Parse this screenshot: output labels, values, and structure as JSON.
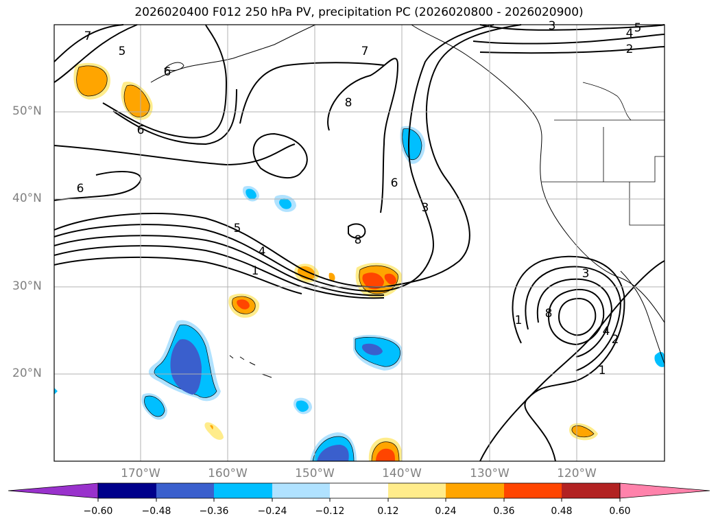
{
  "title": "2026020400 F012 250 hPa PV, precipitation PC (2026020800 - 2026020900)",
  "lat_labels": [
    "50°N",
    "40°N",
    "30°N",
    "20°N"
  ],
  "lon_labels": [
    "170°W",
    "160°W",
    "150°W",
    "140°W",
    "130°W",
    "120°W"
  ],
  "contour_labels": [
    "7",
    "5",
    "6",
    "4",
    "2",
    "5",
    "3",
    "7",
    "8",
    "6",
    "6",
    "6",
    "3",
    "8",
    "5",
    "4",
    "1",
    "3",
    "8",
    "1",
    "4",
    "2",
    "1"
  ],
  "colorbar": {
    "ticks": [
      "−0.60",
      "−0.48",
      "−0.36",
      "−0.24",
      "−0.12",
      "0.12",
      "0.24",
      "0.36",
      "0.48",
      "0.60"
    ],
    "colors": [
      "#9932cc",
      "#00008b",
      "#3a5fcd",
      "#00bfff",
      "#b0e2ff",
      "#ffffff",
      "#ffec8b",
      "#ffa500",
      "#ff4500",
      "#b22222",
      "#ff82ab"
    ]
  }
}
